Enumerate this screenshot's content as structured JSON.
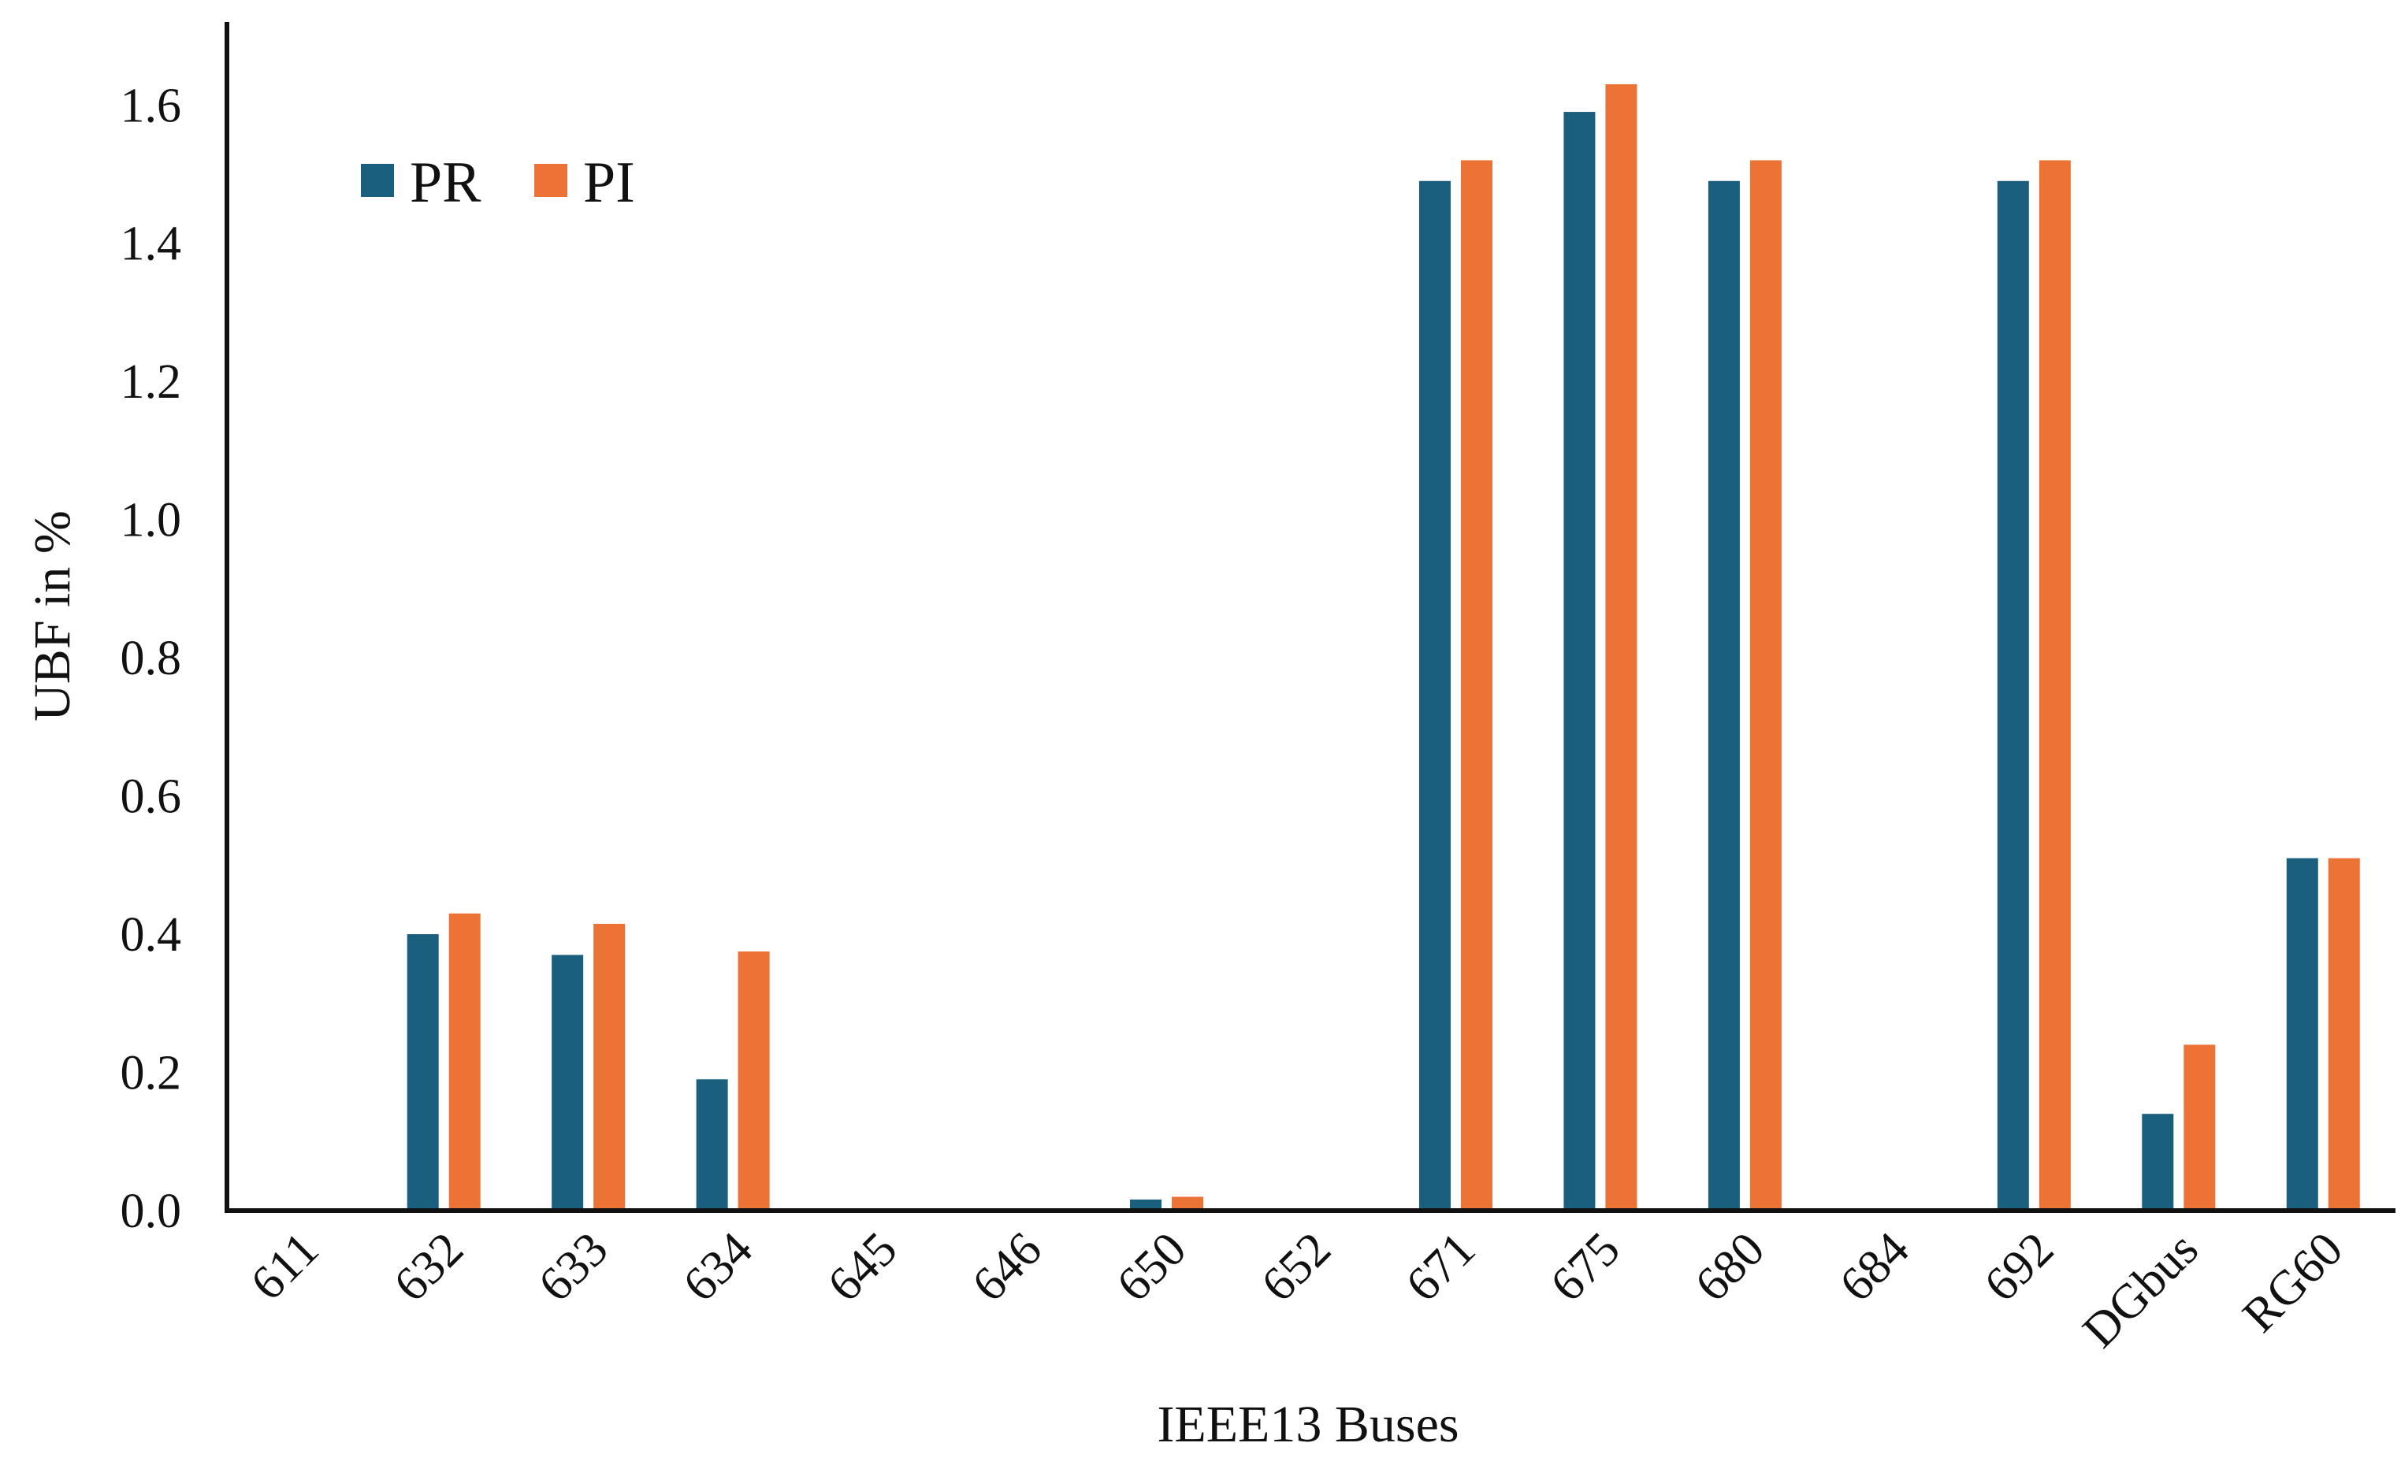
{
  "chart_data": {
    "type": "bar",
    "title": "",
    "xlabel": "IEEE13 Buses",
    "ylabel": "UBF in %",
    "categories": [
      "611",
      "632",
      "633",
      "634",
      "645",
      "646",
      "650",
      "652",
      "671",
      "675",
      "680",
      "684",
      "692",
      "DGbus",
      "RG60"
    ],
    "series": [
      {
        "name": "PR",
        "color": "#1b5f7f",
        "values": [
          0,
          0.4,
          0.37,
          0.19,
          0,
          0,
          0.016,
          0,
          1.49,
          1.59,
          1.49,
          0,
          1.49,
          0.14,
          0.51
        ]
      },
      {
        "name": "PI",
        "color": "#ec7335",
        "values": [
          0,
          0.43,
          0.415,
          0.375,
          0,
          0,
          0.02,
          0,
          1.52,
          1.63,
          1.52,
          0,
          1.52,
          0.24,
          0.51
        ]
      }
    ],
    "ylim": [
      0,
      1.72
    ],
    "yticks": [
      "0.0",
      "0.2",
      "0.4",
      "0.6",
      "0.8",
      "1.0",
      "1.2",
      "1.4",
      "1.6"
    ],
    "grid": false,
    "legend_position": "top-left"
  }
}
